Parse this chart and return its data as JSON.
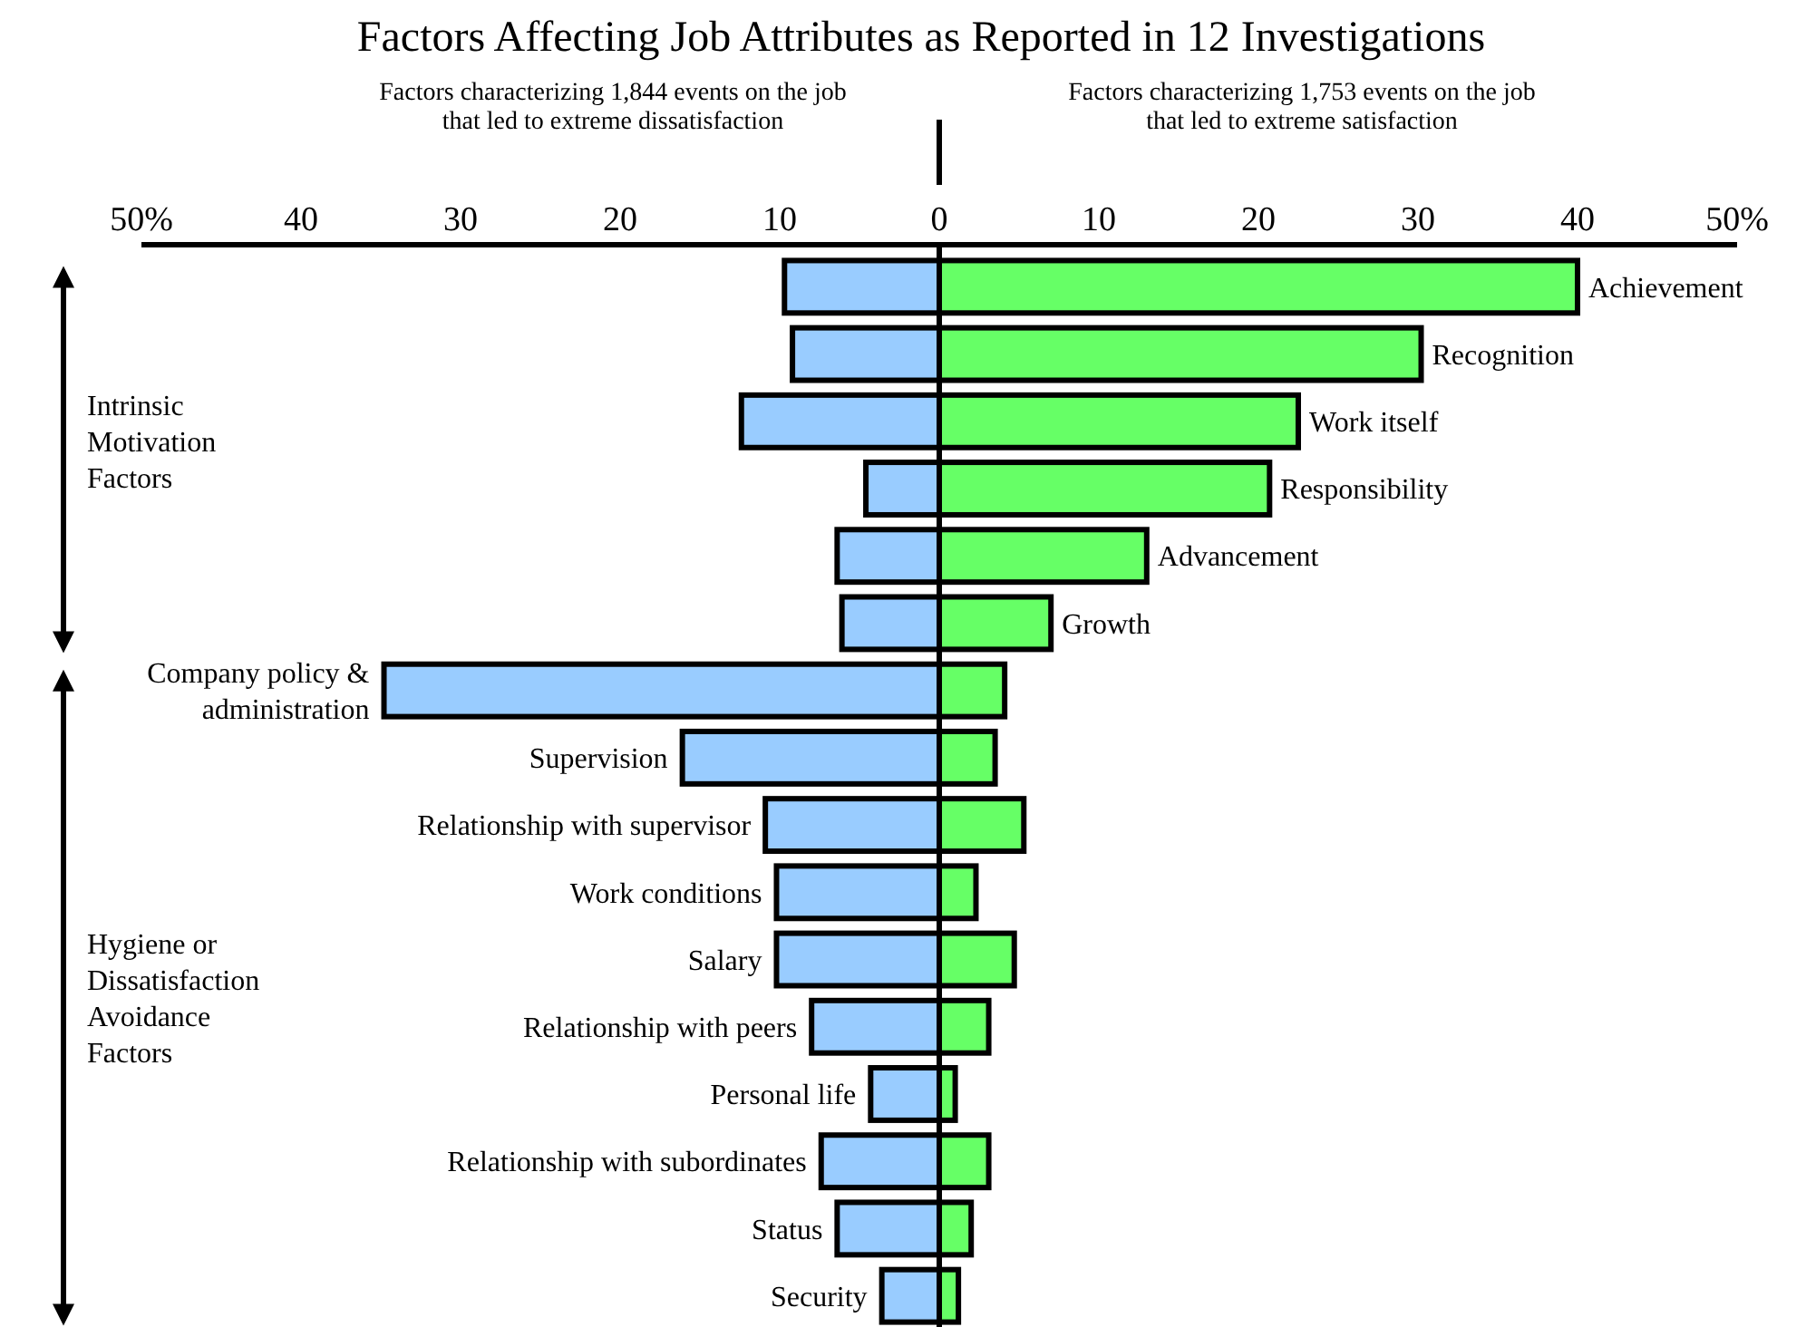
{
  "chart_data": {
    "type": "bar",
    "orientation": "horizontal",
    "title": "Factors Affecting Job Attributes as Reported in 12 Investigations",
    "categories": [
      "Achievement",
      "Recognition",
      "Work itself",
      "Responsibility",
      "Advancement",
      "Growth",
      "Company policy & administration",
      "Supervision",
      "Relationship with supervisor",
      "Work conditions",
      "Salary",
      "Relationship with peers",
      "Personal life",
      "Relationship with subordinates",
      "Status",
      "Security"
    ],
    "series": [
      {
        "color": "#99ccff",
        "values": [
          -9.7,
          -9.2,
          -12.4,
          -4.6,
          -6.4,
          -6.1,
          -34.8,
          -16.1,
          -10.9,
          -10.2,
          -10.2,
          -8.0,
          -4.3,
          -7.4,
          -6.4,
          -3.6
        ]
      },
      {
        "color": "#66ff66",
        "values": [
          40,
          30.2,
          22.5,
          20.7,
          13,
          7.0,
          4.1,
          3.5,
          5.3,
          2.3,
          4.7,
          3.1,
          1.0,
          3.1,
          2.0,
          1.2
        ]
      }
    ],
    "stacked": true,
    "xlim": [
      -50,
      50
    ],
    "xticks": [
      {
        "value": -50,
        "label": "50%"
      },
      {
        "value": -40,
        "label": "40"
      },
      {
        "value": -30,
        "label": "30"
      },
      {
        "value": -20,
        "label": "20"
      },
      {
        "value": -10,
        "label": "10"
      },
      0,
      10,
      20,
      30,
      40,
      {
        "value": 50,
        "label": "50%"
      }
    ],
    "annotations": [
      "Factors characterizing 1,844 events on the job that led to extreme dissatisfaction",
      "Factors characterizing 1,753 events on the job that led to extreme satisfaction",
      "Intrinsic Motivation Factors",
      "Hygiene or Dissatisfaction Avoidance Factors"
    ]
  }
}
